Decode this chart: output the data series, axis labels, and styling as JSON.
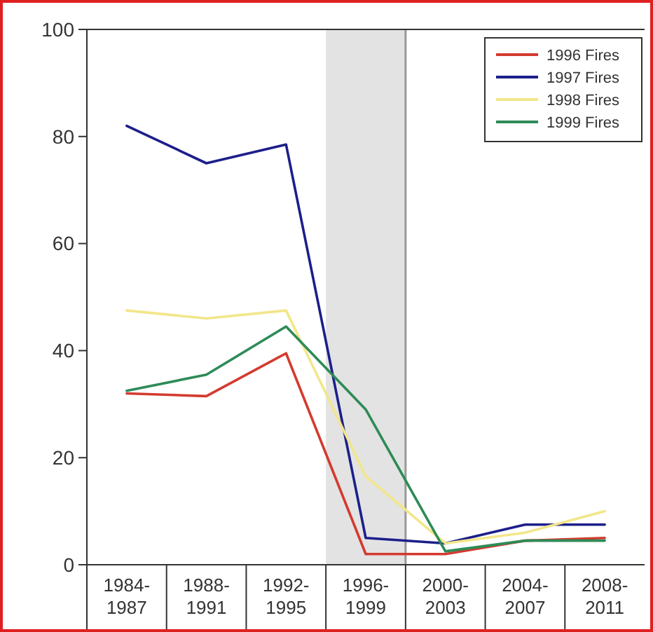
{
  "chart_data": {
    "type": "line",
    "categories": [
      "1984-1987",
      "1988-1991",
      "1992-1995",
      "1996-1999",
      "2000-2003",
      "2004-2007",
      "2008-2011"
    ],
    "series": [
      {
        "name": "1996 Fires",
        "color": "#d43a2f",
        "values": [
          32,
          31.5,
          39.5,
          2,
          2,
          4.5,
          5
        ]
      },
      {
        "name": "1997 Fires",
        "color": "#1c1f8a",
        "values": [
          82,
          75,
          78.5,
          5,
          4,
          7.5,
          7.5
        ]
      },
      {
        "name": "1998 Fires",
        "color": "#f2e68a",
        "values": [
          47.5,
          46,
          47.5,
          16.5,
          4,
          6,
          10
        ]
      },
      {
        "name": "1999 Fires",
        "color": "#2e8b57",
        "values": [
          32.5,
          35.5,
          44.5,
          29,
          2.5,
          4.5,
          4.5
        ]
      }
    ],
    "ylim": [
      0,
      100
    ],
    "yticks": [
      0,
      20,
      40,
      60,
      80,
      100
    ],
    "bands": [
      {
        "axis": "x",
        "from": "1996-1999",
        "to": "1996-1999",
        "color": "#dcdcdc"
      }
    ],
    "grid": false,
    "legend": "top right",
    "marker": "none",
    "line_style": "solid"
  }
}
